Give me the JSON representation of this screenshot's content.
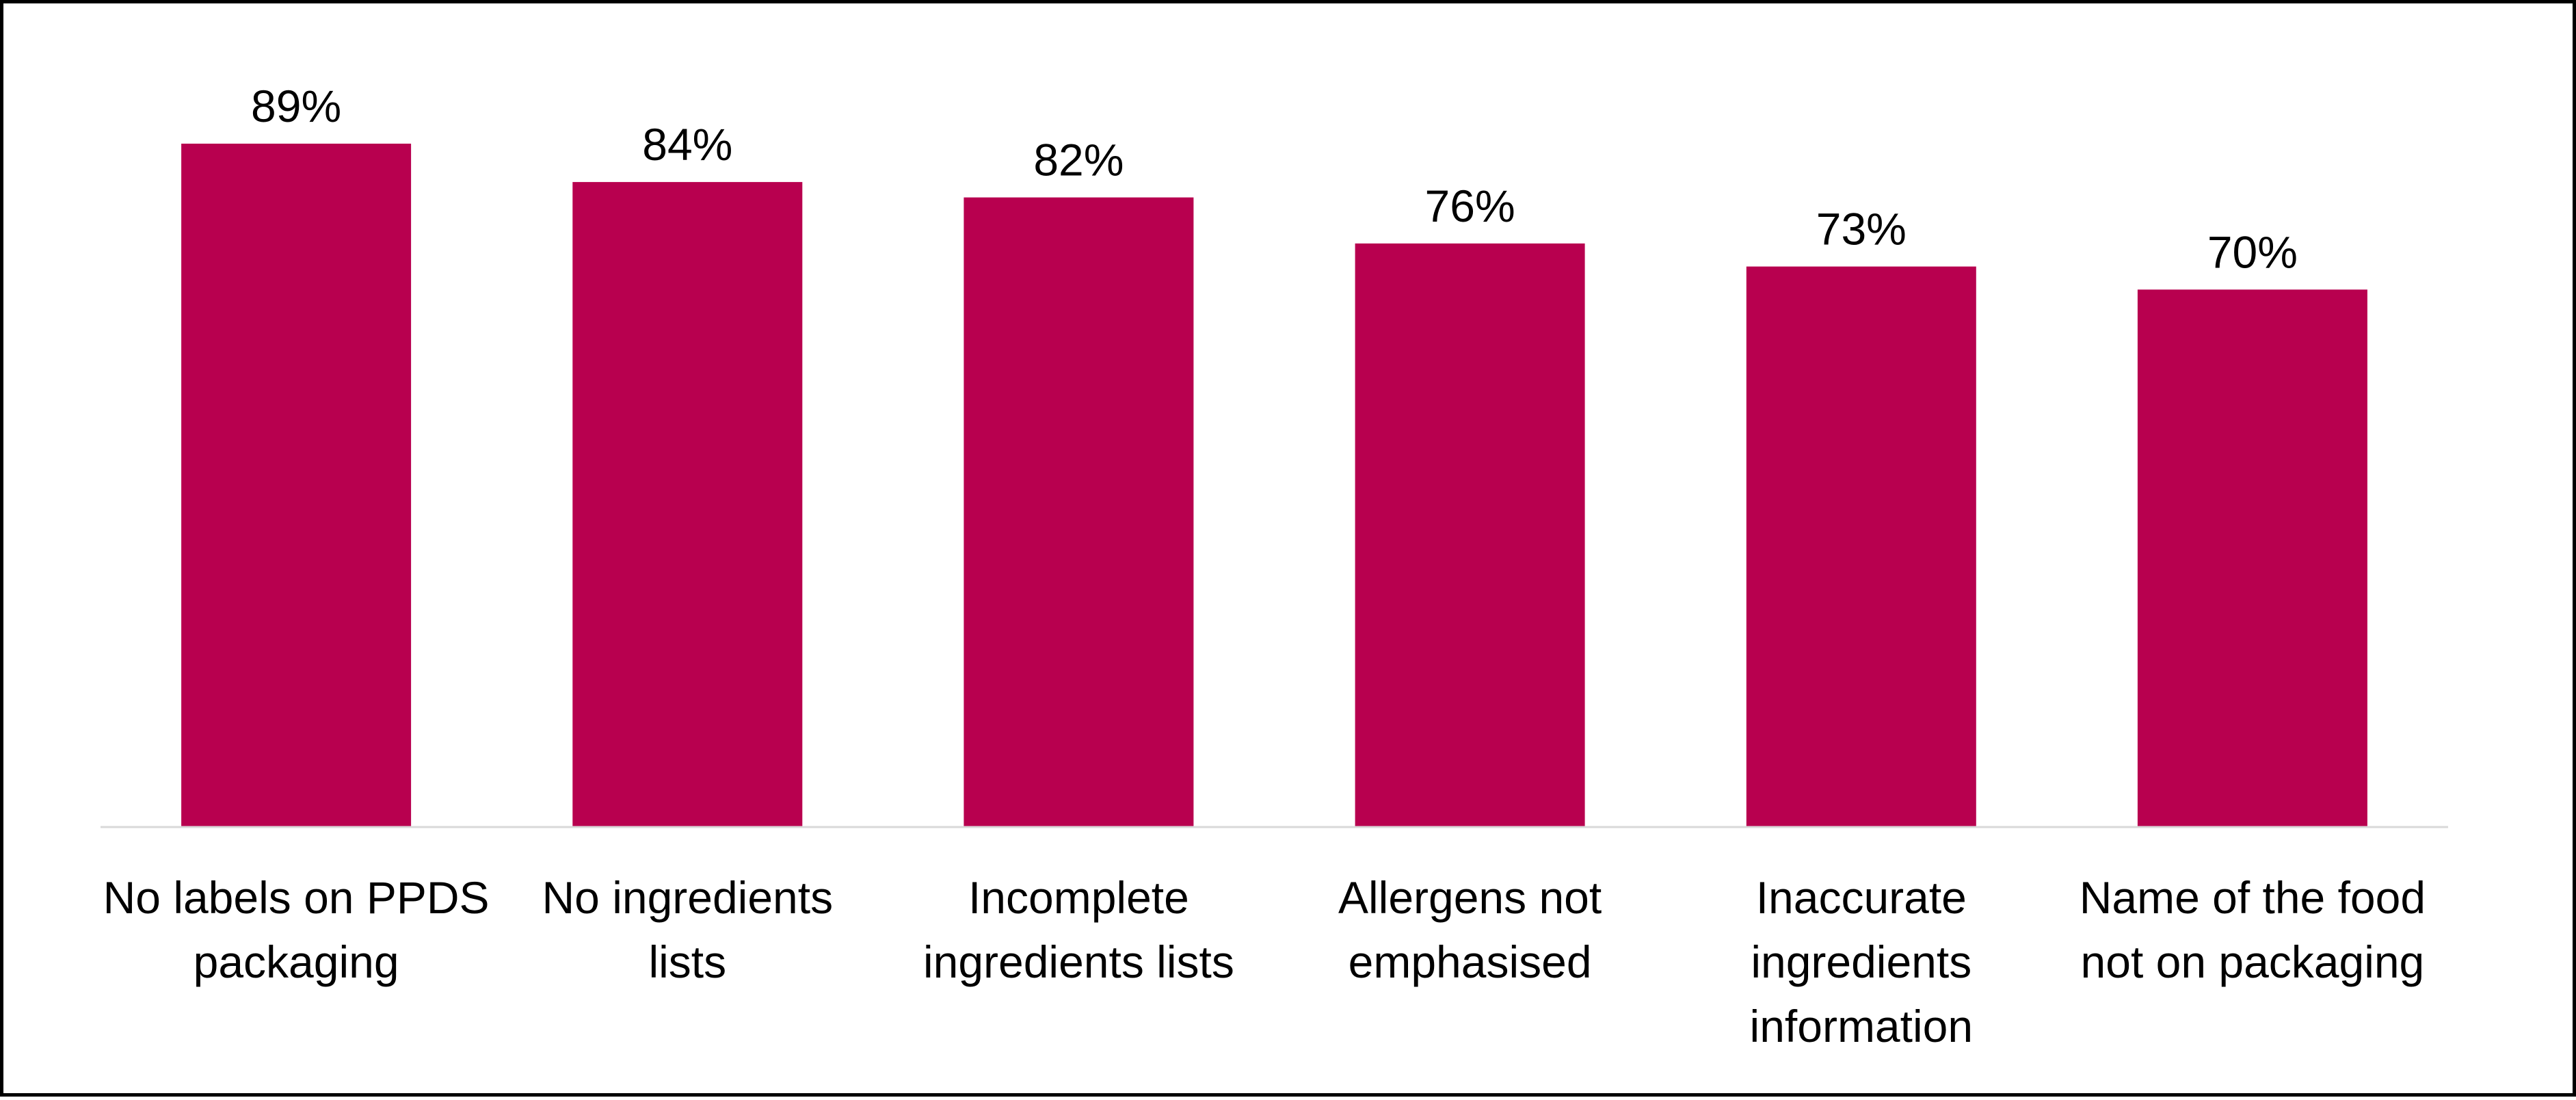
{
  "chart_data": {
    "type": "bar",
    "categories": [
      "No labels on PPDS packaging",
      "No ingredients lists",
      "Incomplete ingredients lists",
      "Allergens not emphasised",
      "Inaccurate ingredients information",
      "Name of the food not on packaging"
    ],
    "category_label_lines": [
      [
        "No labels on PPDS",
        "packaging"
      ],
      [
        "No ingredients",
        "lists"
      ],
      [
        "Incomplete",
        "ingredients lists"
      ],
      [
        "Allergens not",
        "emphasised"
      ],
      [
        "Inaccurate",
        "ingredients",
        "information"
      ],
      [
        "Name of the food",
        "not on packaging"
      ]
    ],
    "values": [
      89,
      84,
      82,
      76,
      73,
      70
    ],
    "data_labels": [
      "89%",
      "84%",
      "82%",
      "76%",
      "73%",
      "70%"
    ],
    "title": "",
    "xlabel": "",
    "ylabel": "",
    "ylim": [
      0,
      100
    ],
    "unit": "%",
    "grid": false,
    "legend": "none",
    "bar_color": "#B8004F",
    "axis_color": "#D9D9D9",
    "border_color": "#000000"
  }
}
